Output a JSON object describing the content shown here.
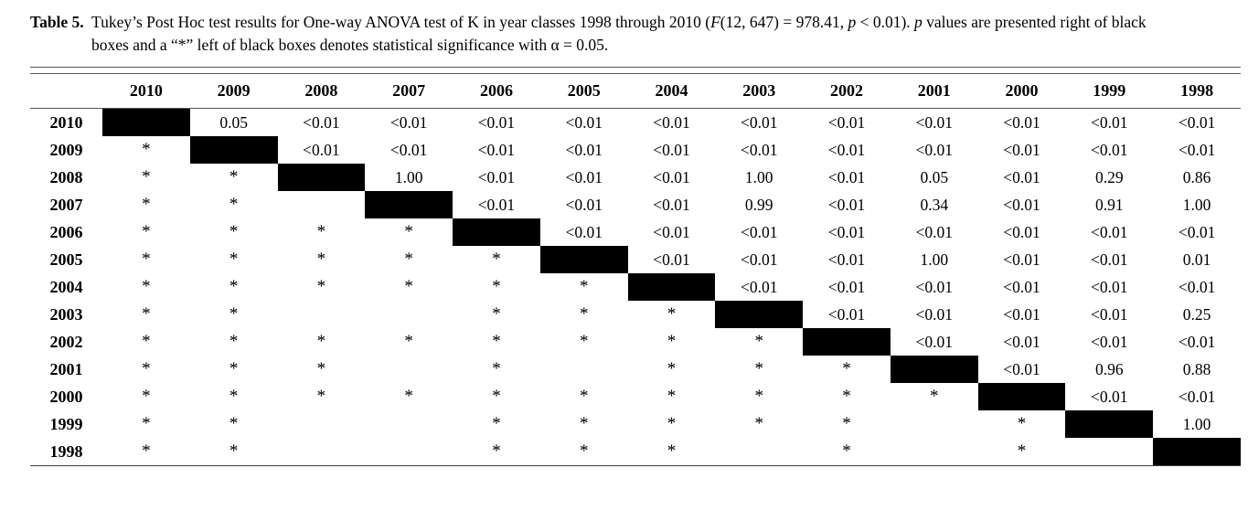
{
  "colors": {
    "background": "#ffffff",
    "text": "#000000",
    "rule": "#55565a",
    "diagonal_box": "#000000"
  },
  "caption": {
    "label": "Table 5.",
    "parts": [
      {
        "text": "Tukey’s Post Hoc test results for One-way ANOVA test of K in year classes 1998 through 2010 (",
        "italic": false
      },
      {
        "text": "F",
        "italic": true
      },
      {
        "text": "(12, 647) = 978.41, ",
        "italic": false
      },
      {
        "text": "p",
        "italic": true
      },
      {
        "text": " < 0.01). ",
        "italic": false
      },
      {
        "text": "p",
        "italic": true
      },
      {
        "text": " values are presented right of black",
        "italic": false
      },
      {
        "text": "boxes and a “*” left of black boxes denotes statistical significance with α = 0.05.",
        "italic": false
      }
    ]
  },
  "table": {
    "corner": "",
    "diagonal_marker": "BOX",
    "significance_marker": "*",
    "columns": [
      "2010",
      "2009",
      "2008",
      "2007",
      "2006",
      "2005",
      "2004",
      "2003",
      "2002",
      "2001",
      "2000",
      "1999",
      "1998"
    ],
    "rows": [
      {
        "label": "2010",
        "cells": [
          "BOX",
          "0.05",
          "<0.01",
          "<0.01",
          "<0.01",
          "<0.01",
          "<0.01",
          "<0.01",
          "<0.01",
          "<0.01",
          "<0.01",
          "<0.01",
          "<0.01"
        ]
      },
      {
        "label": "2009",
        "cells": [
          "*",
          "BOX",
          "<0.01",
          "<0.01",
          "<0.01",
          "<0.01",
          "<0.01",
          "<0.01",
          "<0.01",
          "<0.01",
          "<0.01",
          "<0.01",
          "<0.01"
        ]
      },
      {
        "label": "2008",
        "cells": [
          "*",
          "*",
          "BOX",
          "1.00",
          "<0.01",
          "<0.01",
          "<0.01",
          "1.00",
          "<0.01",
          "0.05",
          "<0.01",
          "0.29",
          "0.86"
        ]
      },
      {
        "label": "2007",
        "cells": [
          "*",
          "*",
          "",
          "BOX",
          "<0.01",
          "<0.01",
          "<0.01",
          "0.99",
          "<0.01",
          "0.34",
          "<0.01",
          "0.91",
          "1.00"
        ]
      },
      {
        "label": "2006",
        "cells": [
          "*",
          "*",
          "*",
          "*",
          "BOX",
          "<0.01",
          "<0.01",
          "<0.01",
          "<0.01",
          "<0.01",
          "<0.01",
          "<0.01",
          "<0.01"
        ]
      },
      {
        "label": "2005",
        "cells": [
          "*",
          "*",
          "*",
          "*",
          "*",
          "BOX",
          "<0.01",
          "<0.01",
          "<0.01",
          "1.00",
          "<0.01",
          "<0.01",
          "0.01"
        ]
      },
      {
        "label": "2004",
        "cells": [
          "*",
          "*",
          "*",
          "*",
          "*",
          "*",
          "BOX",
          "<0.01",
          "<0.01",
          "<0.01",
          "<0.01",
          "<0.01",
          "<0.01"
        ]
      },
      {
        "label": "2003",
        "cells": [
          "*",
          "*",
          "",
          "",
          "*",
          "*",
          "*",
          "BOX",
          "<0.01",
          "<0.01",
          "<0.01",
          "<0.01",
          "0.25"
        ]
      },
      {
        "label": "2002",
        "cells": [
          "*",
          "*",
          "*",
          "*",
          "*",
          "*",
          "*",
          "*",
          "BOX",
          "<0.01",
          "<0.01",
          "<0.01",
          "<0.01"
        ]
      },
      {
        "label": "2001",
        "cells": [
          "*",
          "*",
          "*",
          "",
          "*",
          "",
          "*",
          "*",
          "*",
          "BOX",
          "<0.01",
          "0.96",
          "0.88"
        ]
      },
      {
        "label": "2000",
        "cells": [
          "*",
          "*",
          "*",
          "*",
          "*",
          "*",
          "*",
          "*",
          "*",
          "*",
          "BOX",
          "<0.01",
          "<0.01"
        ]
      },
      {
        "label": "1999",
        "cells": [
          "*",
          "*",
          "",
          "",
          "*",
          "*",
          "*",
          "*",
          "*",
          "",
          "*",
          "BOX",
          "1.00"
        ]
      },
      {
        "label": "1998",
        "cells": [
          "*",
          "*",
          "",
          "",
          "*",
          "*",
          "*",
          "",
          "*",
          "",
          "*",
          "",
          "BOX"
        ]
      }
    ]
  }
}
